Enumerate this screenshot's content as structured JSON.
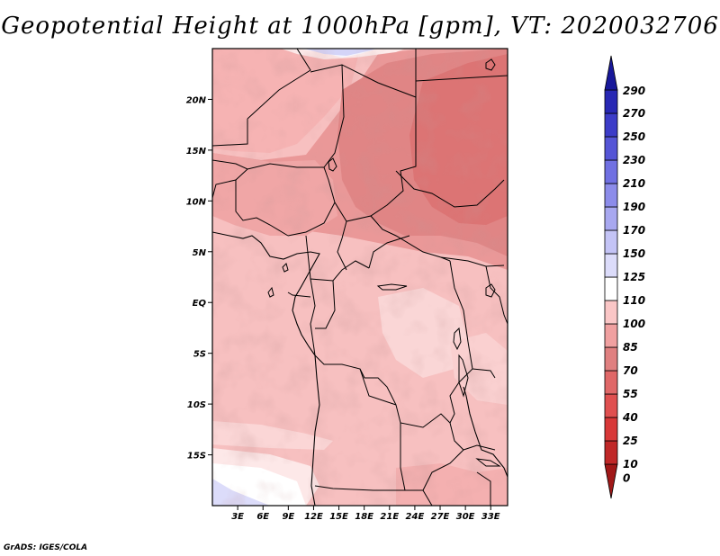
{
  "title": "Geopotential Height at 1000hPa [gpm], VT: 2020032706",
  "credit": "GrADS: IGES/COLA",
  "map": {
    "lon_range": [
      0,
      35
    ],
    "lat_range": [
      -20,
      25
    ],
    "lat_ticks": [
      {
        "value": 20,
        "label": "20N"
      },
      {
        "value": 15,
        "label": "15N"
      },
      {
        "value": 10,
        "label": "10N"
      },
      {
        "value": 5,
        "label": "5N"
      },
      {
        "value": 0,
        "label": "EQ"
      },
      {
        "value": -5,
        "label": "5S"
      },
      {
        "value": -10,
        "label": "10S"
      },
      {
        "value": -15,
        "label": "15S"
      }
    ],
    "lon_ticks": [
      {
        "value": 3,
        "label": "3E"
      },
      {
        "value": 6,
        "label": "6E"
      },
      {
        "value": 9,
        "label": "9E"
      },
      {
        "value": 12,
        "label": "12E"
      },
      {
        "value": 15,
        "label": "15E"
      },
      {
        "value": 18,
        "label": "18E"
      },
      {
        "value": 21,
        "label": "21E"
      },
      {
        "value": 24,
        "label": "24E"
      },
      {
        "value": 27,
        "label": "27E"
      },
      {
        "value": 30,
        "label": "30E"
      },
      {
        "value": 33,
        "label": "33E"
      }
    ]
  },
  "colorbar": {
    "levels": [
      "0",
      "10",
      "25",
      "40",
      "55",
      "70",
      "85",
      "100",
      "110",
      "125",
      "150",
      "170",
      "190",
      "210",
      "230",
      "250",
      "270",
      "290"
    ],
    "colors": [
      "#a01818",
      "#c02828",
      "#d83838",
      "#e05050",
      "#e06868",
      "#e08080",
      "#f0a0a0",
      "#fac6c6",
      "#ffffff",
      "#dcdcfa",
      "#c4c4f6",
      "#a8a8f0",
      "#8c8cea",
      "#7070e2",
      "#5555d6",
      "#3c3cc8",
      "#2828b4",
      "#18189a"
    ]
  }
}
